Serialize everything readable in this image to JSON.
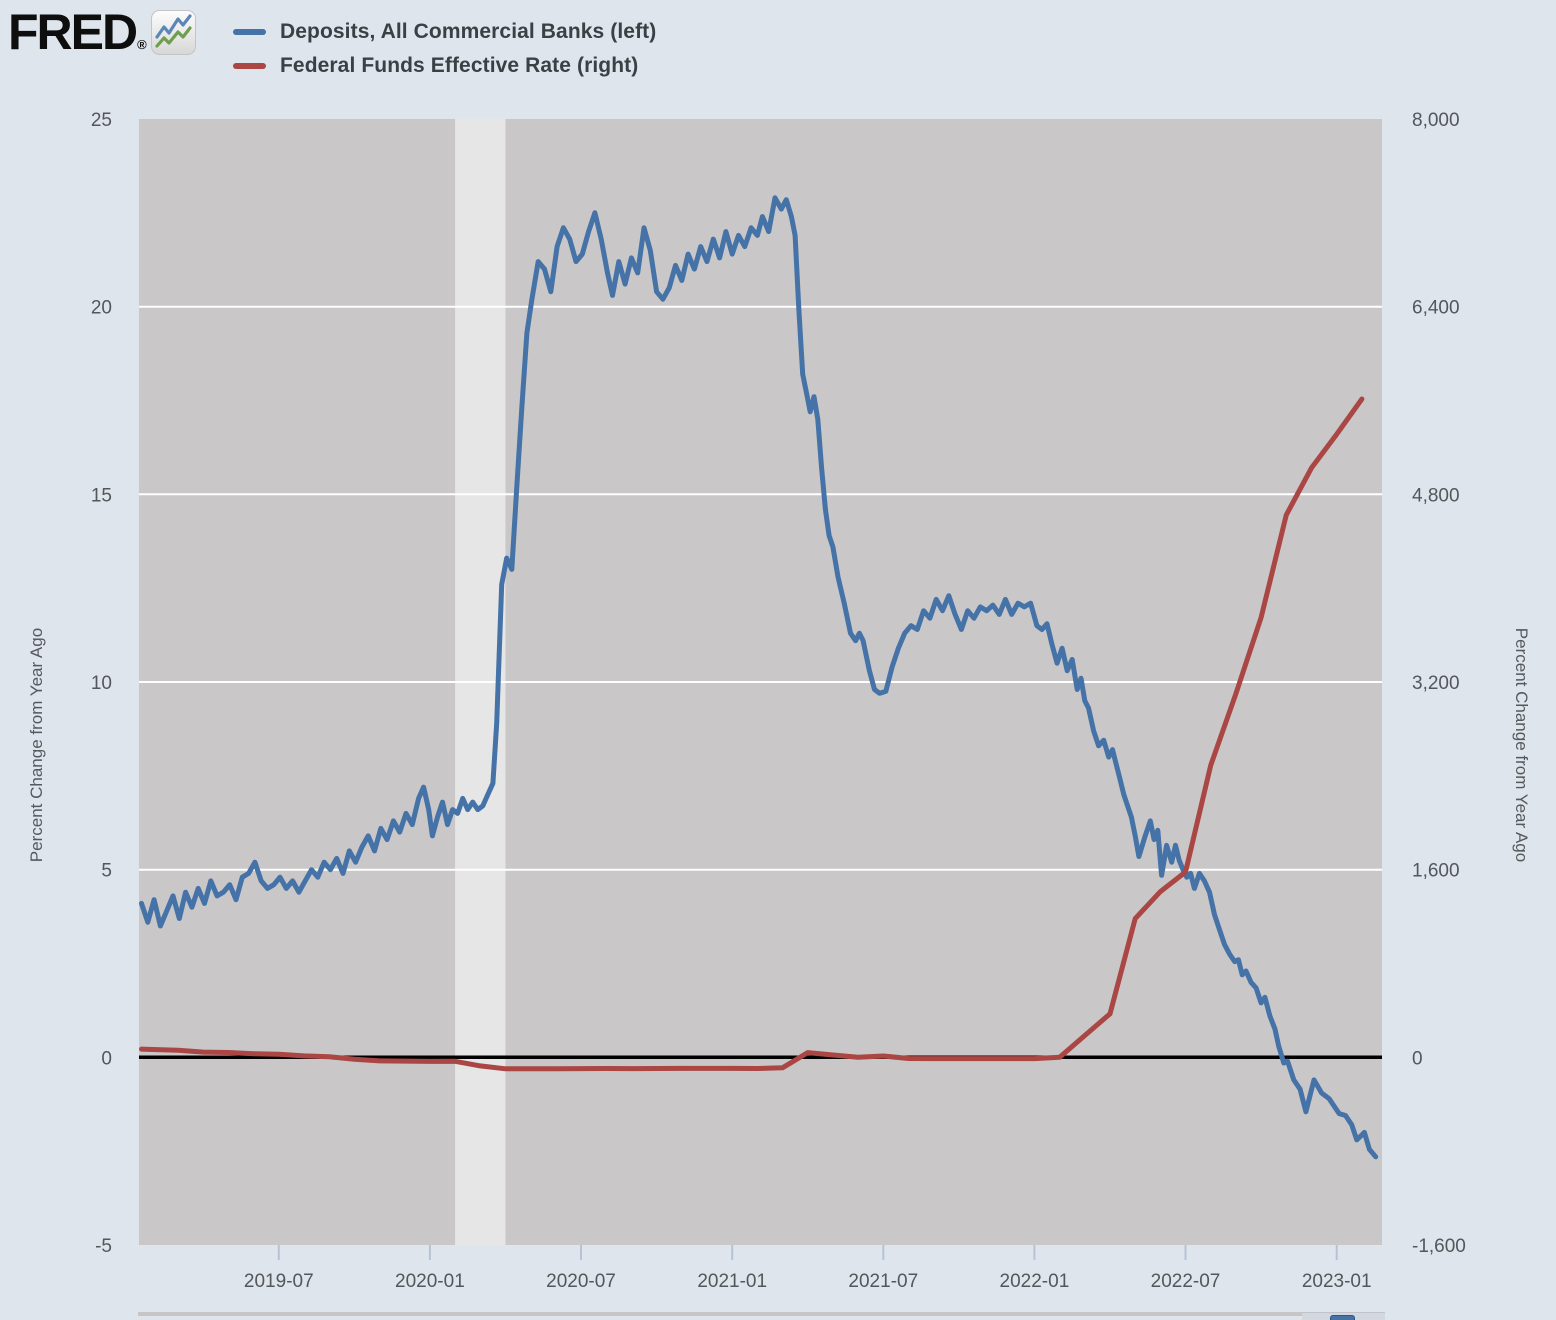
{
  "header": {
    "logo": {
      "text": "FRED",
      "registered": "®"
    },
    "legend": [
      {
        "key": "deposits",
        "label": "Deposits, All Commercial Banks (left)",
        "color": "#4572a7"
      },
      {
        "key": "fedfunds",
        "label": "Federal Funds Effective Rate (right)",
        "color": "#aa4643"
      }
    ]
  },
  "chart_data": {
    "type": "line",
    "title": "",
    "x_axis": {
      "unit": "months_since_2019-01",
      "domain_months": [
        0.45,
        49.8
      ],
      "tick_months": [
        6,
        12,
        18,
        24,
        30,
        36,
        42,
        48
      ],
      "tick_labels": [
        "2019-07",
        "2020-01",
        "2020-07",
        "2021-01",
        "2021-07",
        "2022-01",
        "2022-07",
        "2023-01"
      ]
    },
    "y_left": {
      "label": "Percent Change from Year Ago",
      "range": [
        -5,
        25
      ],
      "ticks": [
        25,
        20,
        15,
        10,
        5,
        0,
        -5
      ],
      "gridlines": [
        20,
        15,
        10,
        5
      ]
    },
    "y_right": {
      "label": "Percent Change from Year Ago",
      "range": [
        -1600,
        8000
      ],
      "ticks": [
        8000,
        6400,
        4800,
        3200,
        1600,
        0,
        -1600
      ]
    },
    "zero_line": 0,
    "recession_band_months": [
      13,
      15
    ],
    "colors": {
      "plot_background": "#c9c7c8",
      "recession_band": "#e6e6e6",
      "gridline": "#ffffff",
      "zero_line": "#000000",
      "x_tick_mark": "#b6c3d6",
      "deposits_blue": "#4572a7",
      "fedfunds_red": "#aa4643"
    },
    "series": [
      {
        "key": "deposits",
        "name": "Deposits, All Commercial Banks",
        "axis": "left",
        "color": "#4572a7",
        "points": [
          [
            0.55,
            4.1
          ],
          [
            0.8,
            3.6
          ],
          [
            1.05,
            4.2
          ],
          [
            1.3,
            3.5
          ],
          [
            1.55,
            3.9
          ],
          [
            1.8,
            4.3
          ],
          [
            2.05,
            3.7
          ],
          [
            2.3,
            4.4
          ],
          [
            2.55,
            4.0
          ],
          [
            2.8,
            4.5
          ],
          [
            3.05,
            4.1
          ],
          [
            3.3,
            4.7
          ],
          [
            3.55,
            4.3
          ],
          [
            3.8,
            4.4
          ],
          [
            4.05,
            4.6
          ],
          [
            4.3,
            4.2
          ],
          [
            4.55,
            4.8
          ],
          [
            4.8,
            4.9
          ],
          [
            5.05,
            5.2
          ],
          [
            5.3,
            4.7
          ],
          [
            5.55,
            4.5
          ],
          [
            5.8,
            4.6
          ],
          [
            6.05,
            4.8
          ],
          [
            6.3,
            4.5
          ],
          [
            6.55,
            4.7
          ],
          [
            6.8,
            4.4
          ],
          [
            7.05,
            4.7
          ],
          [
            7.3,
            5.0
          ],
          [
            7.55,
            4.8
          ],
          [
            7.8,
            5.2
          ],
          [
            8.05,
            5.0
          ],
          [
            8.3,
            5.3
          ],
          [
            8.55,
            4.9
          ],
          [
            8.8,
            5.5
          ],
          [
            9.05,
            5.2
          ],
          [
            9.3,
            5.6
          ],
          [
            9.55,
            5.9
          ],
          [
            9.8,
            5.5
          ],
          [
            10.05,
            6.1
          ],
          [
            10.3,
            5.8
          ],
          [
            10.55,
            6.3
          ],
          [
            10.8,
            6.0
          ],
          [
            11.05,
            6.5
          ],
          [
            11.3,
            6.2
          ],
          [
            11.55,
            6.9
          ],
          [
            11.75,
            7.2
          ],
          [
            11.95,
            6.6
          ],
          [
            12.1,
            5.9
          ],
          [
            12.3,
            6.4
          ],
          [
            12.5,
            6.8
          ],
          [
            12.7,
            6.2
          ],
          [
            12.9,
            6.6
          ],
          [
            13.1,
            6.5
          ],
          [
            13.3,
            6.9
          ],
          [
            13.5,
            6.6
          ],
          [
            13.7,
            6.8
          ],
          [
            13.9,
            6.6
          ],
          [
            14.1,
            6.7
          ],
          [
            14.3,
            7.0
          ],
          [
            14.5,
            7.3
          ],
          [
            14.65,
            8.9
          ],
          [
            14.85,
            12.6
          ],
          [
            15.05,
            13.3
          ],
          [
            15.25,
            13.0
          ],
          [
            15.45,
            15.2
          ],
          [
            15.65,
            17.3
          ],
          [
            15.85,
            19.3
          ],
          [
            16.05,
            20.2
          ],
          [
            16.3,
            21.2
          ],
          [
            16.55,
            21.0
          ],
          [
            16.8,
            20.4
          ],
          [
            17.05,
            21.6
          ],
          [
            17.3,
            22.1
          ],
          [
            17.55,
            21.8
          ],
          [
            17.8,
            21.2
          ],
          [
            18.05,
            21.4
          ],
          [
            18.3,
            22.0
          ],
          [
            18.55,
            22.5
          ],
          [
            18.8,
            21.8
          ],
          [
            19.05,
            20.9
          ],
          [
            19.25,
            20.3
          ],
          [
            19.5,
            21.2
          ],
          [
            19.75,
            20.6
          ],
          [
            20.0,
            21.3
          ],
          [
            20.25,
            20.9
          ],
          [
            20.5,
            22.1
          ],
          [
            20.75,
            21.5
          ],
          [
            21.0,
            20.4
          ],
          [
            21.25,
            20.2
          ],
          [
            21.5,
            20.5
          ],
          [
            21.75,
            21.1
          ],
          [
            22.0,
            20.7
          ],
          [
            22.25,
            21.4
          ],
          [
            22.5,
            21.0
          ],
          [
            22.75,
            21.6
          ],
          [
            23.0,
            21.2
          ],
          [
            23.25,
            21.8
          ],
          [
            23.5,
            21.3
          ],
          [
            23.75,
            22.0
          ],
          [
            24.0,
            21.4
          ],
          [
            24.25,
            21.9
          ],
          [
            24.5,
            21.6
          ],
          [
            24.75,
            22.1
          ],
          [
            25.0,
            21.9
          ],
          [
            25.2,
            22.4
          ],
          [
            25.45,
            22.0
          ],
          [
            25.7,
            22.9
          ],
          [
            25.95,
            22.6
          ],
          [
            26.15,
            22.85
          ],
          [
            26.35,
            22.4
          ],
          [
            26.5,
            21.9
          ],
          [
            26.65,
            19.9
          ],
          [
            26.8,
            18.2
          ],
          [
            26.95,
            17.7
          ],
          [
            27.1,
            17.2
          ],
          [
            27.25,
            17.6
          ],
          [
            27.4,
            17.0
          ],
          [
            27.55,
            15.7
          ],
          [
            27.7,
            14.6
          ],
          [
            27.85,
            13.9
          ],
          [
            28.0,
            13.6
          ],
          [
            28.2,
            12.8
          ],
          [
            28.45,
            12.1
          ],
          [
            28.7,
            11.3
          ],
          [
            28.9,
            11.1
          ],
          [
            29.05,
            11.3
          ],
          [
            29.2,
            11.1
          ],
          [
            29.45,
            10.3
          ],
          [
            29.65,
            9.8
          ],
          [
            29.85,
            9.7
          ],
          [
            30.1,
            9.75
          ],
          [
            30.35,
            10.4
          ],
          [
            30.6,
            10.9
          ],
          [
            30.85,
            11.3
          ],
          [
            31.1,
            11.5
          ],
          [
            31.35,
            11.4
          ],
          [
            31.6,
            11.9
          ],
          [
            31.85,
            11.7
          ],
          [
            32.1,
            12.2
          ],
          [
            32.35,
            11.9
          ],
          [
            32.6,
            12.3
          ],
          [
            32.85,
            11.8
          ],
          [
            33.1,
            11.4
          ],
          [
            33.35,
            11.9
          ],
          [
            33.6,
            11.7
          ],
          [
            33.85,
            12.0
          ],
          [
            34.1,
            11.9
          ],
          [
            34.35,
            12.05
          ],
          [
            34.6,
            11.8
          ],
          [
            34.85,
            12.2
          ],
          [
            35.1,
            11.8
          ],
          [
            35.35,
            12.1
          ],
          [
            35.6,
            12.0
          ],
          [
            35.85,
            12.1
          ],
          [
            36.1,
            11.5
          ],
          [
            36.3,
            11.4
          ],
          [
            36.5,
            11.55
          ],
          [
            36.7,
            11.0
          ],
          [
            36.9,
            10.5
          ],
          [
            37.1,
            10.9
          ],
          [
            37.3,
            10.3
          ],
          [
            37.5,
            10.6
          ],
          [
            37.7,
            9.8
          ],
          [
            37.85,
            10.1
          ],
          [
            38.0,
            9.5
          ],
          [
            38.15,
            9.3
          ],
          [
            38.35,
            8.7
          ],
          [
            38.55,
            8.3
          ],
          [
            38.75,
            8.45
          ],
          [
            38.95,
            8.0
          ],
          [
            39.1,
            8.2
          ],
          [
            39.25,
            7.8
          ],
          [
            39.4,
            7.4
          ],
          [
            39.55,
            7.0
          ],
          [
            39.7,
            6.7
          ],
          [
            39.85,
            6.4
          ],
          [
            40.0,
            5.9
          ],
          [
            40.15,
            5.35
          ],
          [
            40.4,
            5.9
          ],
          [
            40.6,
            6.3
          ],
          [
            40.75,
            5.8
          ],
          [
            40.9,
            6.05
          ],
          [
            41.05,
            4.85
          ],
          [
            41.25,
            5.65
          ],
          [
            41.45,
            5.2
          ],
          [
            41.6,
            5.65
          ],
          [
            41.75,
            5.25
          ],
          [
            41.9,
            5.0
          ],
          [
            42.05,
            4.8
          ],
          [
            42.2,
            4.9
          ],
          [
            42.35,
            4.5
          ],
          [
            42.55,
            4.9
          ],
          [
            42.75,
            4.7
          ],
          [
            42.95,
            4.4
          ],
          [
            43.15,
            3.8
          ],
          [
            43.35,
            3.4
          ],
          [
            43.55,
            3.0
          ],
          [
            43.75,
            2.75
          ],
          [
            43.95,
            2.55
          ],
          [
            44.1,
            2.6
          ],
          [
            44.25,
            2.2
          ],
          [
            44.4,
            2.3
          ],
          [
            44.6,
            2.0
          ],
          [
            44.8,
            1.85
          ],
          [
            45.0,
            1.45
          ],
          [
            45.15,
            1.6
          ],
          [
            45.35,
            1.1
          ],
          [
            45.55,
            0.75
          ],
          [
            45.7,
            0.3
          ],
          [
            45.9,
            -0.15
          ],
          [
            46.05,
            -0.1
          ],
          [
            46.3,
            -0.6
          ],
          [
            46.55,
            -0.85
          ],
          [
            46.78,
            -1.45
          ],
          [
            47.1,
            -0.6
          ],
          [
            47.4,
            -0.95
          ],
          [
            47.7,
            -1.1
          ],
          [
            47.9,
            -1.3
          ],
          [
            48.1,
            -1.5
          ],
          [
            48.35,
            -1.55
          ],
          [
            48.6,
            -1.8
          ],
          [
            48.8,
            -2.2
          ],
          [
            49.1,
            -2.0
          ],
          [
            49.3,
            -2.45
          ],
          [
            49.55,
            -2.65
          ]
        ]
      },
      {
        "key": "fedfunds",
        "name": "Federal Funds Effective Rate",
        "axis": "right",
        "color": "#aa4643",
        "points": [
          [
            0.55,
            70
          ],
          [
            1,
            67
          ],
          [
            2,
            60
          ],
          [
            3,
            45
          ],
          [
            4,
            41
          ],
          [
            5,
            31
          ],
          [
            6,
            26
          ],
          [
            7,
            12
          ],
          [
            8,
            5
          ],
          [
            9,
            -16
          ],
          [
            10,
            -30
          ],
          [
            11,
            -32
          ],
          [
            12,
            -35
          ],
          [
            13,
            -34
          ],
          [
            14,
            -73
          ],
          [
            15,
            -98
          ],
          [
            16,
            -98
          ],
          [
            17,
            -97
          ],
          [
            18,
            -96
          ],
          [
            19,
            -95
          ],
          [
            20,
            -96
          ],
          [
            21,
            -95
          ],
          [
            22,
            -94
          ],
          [
            23,
            -94
          ],
          [
            24,
            -94
          ],
          [
            25,
            -95
          ],
          [
            26,
            -89
          ],
          [
            27,
            40
          ],
          [
            28,
            20
          ],
          [
            29,
            0
          ],
          [
            30,
            11
          ],
          [
            31,
            -10
          ],
          [
            32,
            -11
          ],
          [
            33,
            -11
          ],
          [
            34,
            -11
          ],
          [
            35,
            -11
          ],
          [
            36,
            -11
          ],
          [
            37,
            0
          ],
          [
            38,
            186
          ],
          [
            39,
            371
          ],
          [
            40,
            1183
          ],
          [
            41,
            1413
          ],
          [
            42,
            1580
          ],
          [
            43,
            2489
          ],
          [
            44,
            3100
          ],
          [
            45,
            3750
          ],
          [
            46,
            4625
          ],
          [
            47,
            5025
          ],
          [
            48,
            5313
          ],
          [
            49,
            5613
          ]
        ]
      }
    ]
  },
  "footer": {
    "icon_name": "fred-mini-logo-icon"
  }
}
